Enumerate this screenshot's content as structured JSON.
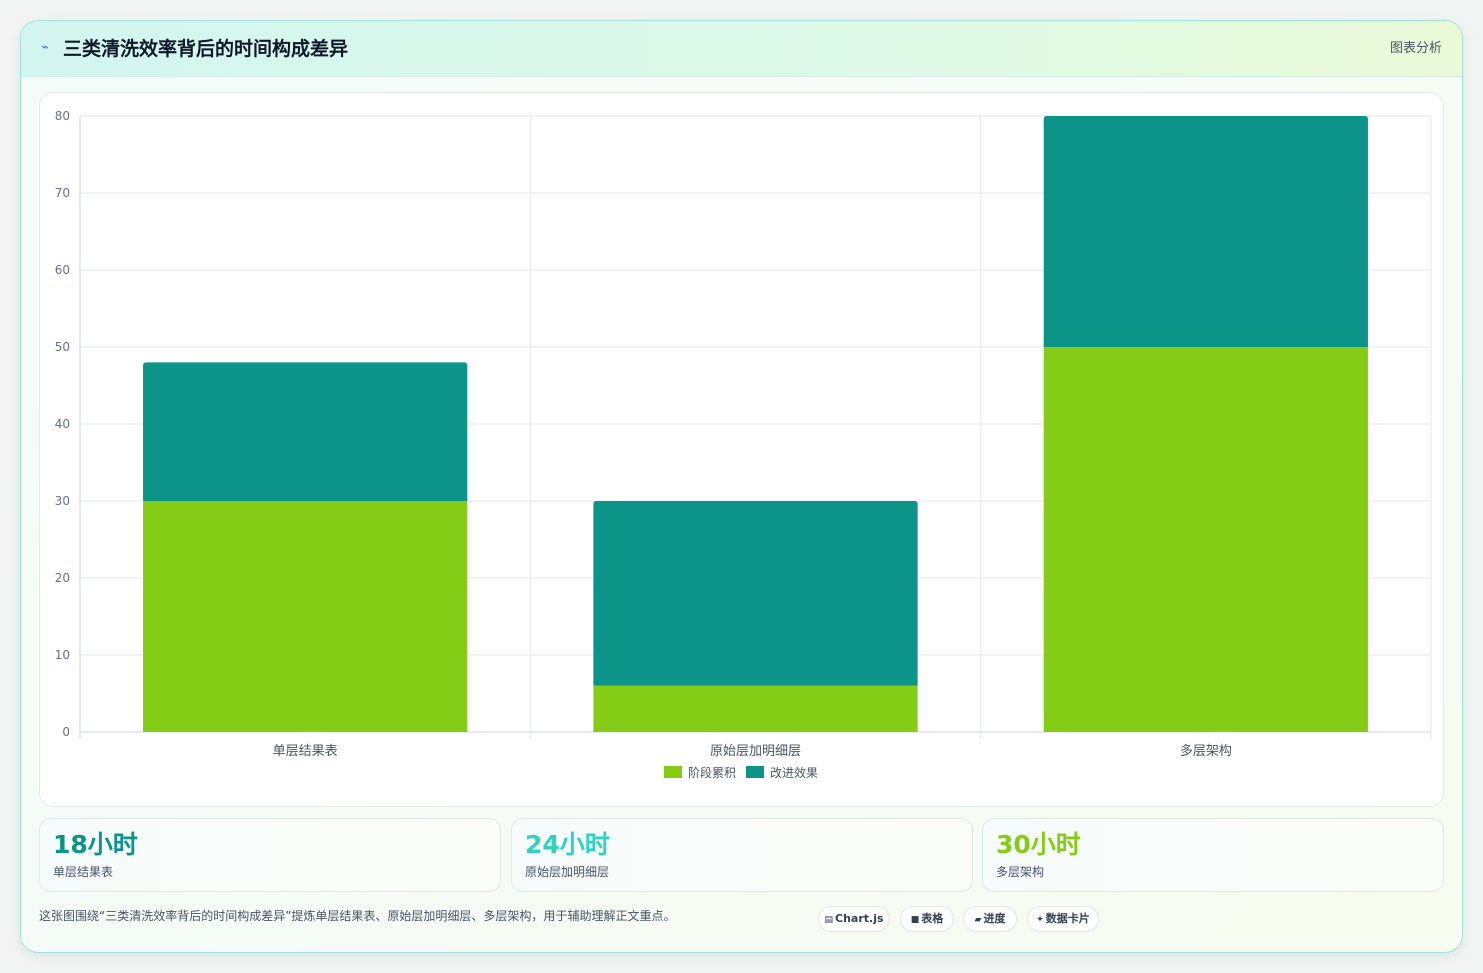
{
  "header": {
    "icon": "⌁",
    "title": "三类清洗效率背后的时间构成差异",
    "tag": "图表分析"
  },
  "chart_data": {
    "type": "bar",
    "stacked": true,
    "title": "",
    "xlabel": "",
    "ylabel": "",
    "categories": [
      "单层结果表",
      "原始层加明细层",
      "多层架构"
    ],
    "series": [
      {
        "name": "阶段累积",
        "values": [
          30,
          6,
          50
        ],
        "color": "#84cc16"
      },
      {
        "name": "改进效果",
        "values": [
          18,
          24,
          30
        ],
        "color": "#0d9488"
      }
    ],
    "ylim": [
      0,
      80
    ],
    "yticks": [
      0,
      10,
      20,
      30,
      40,
      50,
      60,
      70,
      80
    ],
    "grid": true,
    "legend": "bottom"
  },
  "stats": [
    {
      "value": "18小时",
      "label": "单层结果表",
      "color": "#0d9488"
    },
    {
      "value": "24小时",
      "label": "原始层加明细层",
      "color": "#2dd4bf"
    },
    {
      "value": "30小时",
      "label": "多层架构",
      "color": "#84cc16"
    }
  ],
  "footer": {
    "text": "这张图围绕“三类清洗效率背后的时间构成差异”提炼单层结果表、原始层加明细层、多层架构，用于辅助理解正文重点。",
    "chips": [
      {
        "icon": "▤",
        "label": "Chart.js"
      },
      {
        "icon": "■",
        "label": "表格"
      },
      {
        "icon": "▰",
        "label": "进度"
      },
      {
        "icon": "✦",
        "label": "数据卡片"
      }
    ]
  }
}
